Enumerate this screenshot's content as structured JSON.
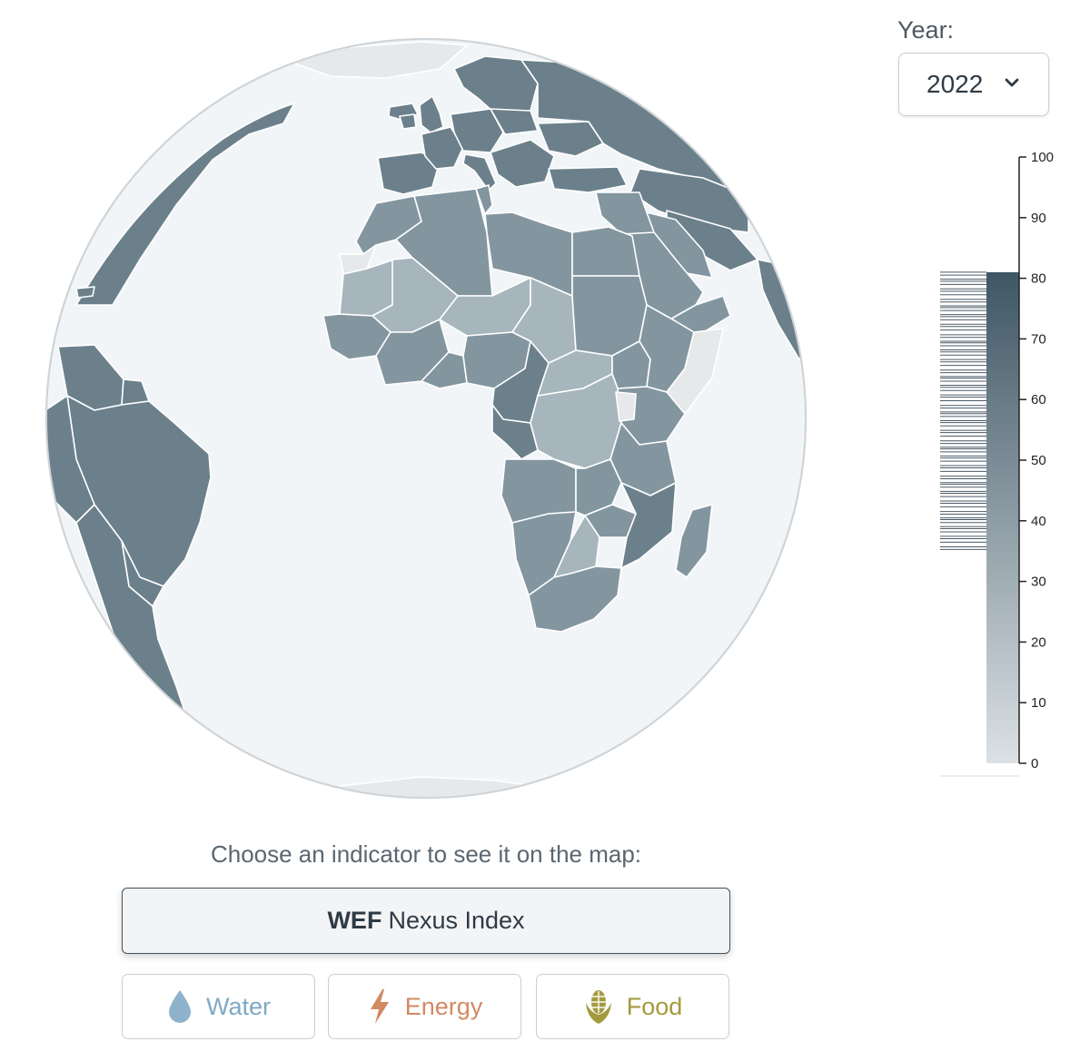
{
  "year_selector": {
    "label": "Year:",
    "value": "2022"
  },
  "legend": {
    "ticks": [
      "100",
      "90",
      "80",
      "70",
      "60",
      "50",
      "40",
      "30",
      "20",
      "10",
      "0"
    ],
    "min": 0,
    "max": 100,
    "selected_max_value": 81,
    "country_value_range": [
      35,
      81
    ],
    "color_low": "#dbe1e5",
    "color_high": "#3f5664"
  },
  "colors": {
    "ocean": "#f1f5f7",
    "land_high": "#6b808b",
    "land_mid": "#8396a0",
    "land_low": "#a7b5bd",
    "no_data": "#e6e8ea"
  },
  "indicator_panel": {
    "prompt": "Choose an indicator to see it on the map:",
    "main_button": {
      "bold": "WEF",
      "rest": "Nexus Index"
    },
    "buttons": [
      {
        "label": "Water",
        "icon": "water-drop-icon",
        "color": "#7fa8c4"
      },
      {
        "label": "Energy",
        "icon": "lightning-icon",
        "color": "#d28a63"
      },
      {
        "label": "Food",
        "icon": "corn-icon",
        "color": "#a39a3e"
      }
    ]
  }
}
